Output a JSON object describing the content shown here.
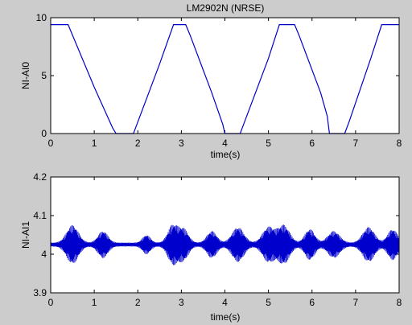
{
  "window": {
    "background": "#cccccc"
  },
  "chart_data": [
    {
      "type": "line",
      "title": "LM2902N (NRSE)",
      "xlabel": "time(s)",
      "ylabel": "NI-AI0",
      "xlim": [
        0,
        8
      ],
      "ylim": [
        0,
        10
      ],
      "xticks": [
        "0",
        "1",
        "2",
        "3",
        "4",
        "5",
        "6",
        "7",
        "8"
      ],
      "yticks": [
        "0",
        "5",
        "10"
      ],
      "line_color": "#0000cc",
      "grid": false,
      "series": [
        {
          "x": [
            0,
            0.4,
            0.5,
            1.0,
            1.42,
            1.5,
            1.9,
            2.0,
            2.5,
            2.82,
            3.1,
            3.2,
            3.7,
            3.95,
            4.0,
            4.35,
            4.45,
            5.0,
            5.25,
            5.6,
            5.7,
            6.2,
            6.35,
            6.4,
            6.75,
            6.85,
            7.35,
            7.6,
            8.0
          ],
          "y": [
            9.4,
            9.4,
            8.5,
            4.0,
            0.5,
            0.0,
            0.0,
            1.0,
            6.0,
            9.4,
            9.4,
            8.5,
            3.5,
            0.8,
            0.0,
            0.0,
            1.0,
            6.5,
            9.4,
            9.4,
            8.5,
            3.5,
            1.5,
            0.0,
            0.0,
            1.0,
            6.5,
            9.4,
            9.4
          ]
        }
      ]
    },
    {
      "type": "line",
      "title": "",
      "xlabel": "time(s)",
      "ylabel": "NI-AI1",
      "xlim": [
        0,
        8
      ],
      "ylim": [
        3.9,
        4.2
      ],
      "xticks": [
        "0",
        "1",
        "2",
        "3",
        "4",
        "5",
        "6",
        "7",
        "8"
      ],
      "yticks": [
        "3.9",
        "4",
        "4.1",
        "4.2"
      ],
      "line_color": "#0000cc",
      "grid": false,
      "series": [
        {
          "baseline": 4.025,
          "noise_amplitude": 0.005,
          "bursts": [
            {
              "center": 0.5,
              "width": 0.3,
              "amplitude": 0.045
            },
            {
              "center": 1.2,
              "width": 0.25,
              "amplitude": 0.03
            },
            {
              "center": 2.2,
              "width": 0.2,
              "amplitude": 0.02
            },
            {
              "center": 2.8,
              "width": 0.25,
              "amplitude": 0.045
            },
            {
              "center": 3.05,
              "width": 0.25,
              "amplitude": 0.035
            },
            {
              "center": 3.7,
              "width": 0.25,
              "amplitude": 0.03
            },
            {
              "center": 4.3,
              "width": 0.3,
              "amplitude": 0.04
            },
            {
              "center": 5.0,
              "width": 0.3,
              "amplitude": 0.04
            },
            {
              "center": 5.35,
              "width": 0.3,
              "amplitude": 0.045
            },
            {
              "center": 5.95,
              "width": 0.25,
              "amplitude": 0.035
            },
            {
              "center": 6.5,
              "width": 0.3,
              "amplitude": 0.03
            },
            {
              "center": 7.3,
              "width": 0.3,
              "amplitude": 0.04
            },
            {
              "center": 7.85,
              "width": 0.25,
              "amplitude": 0.035
            }
          ]
        }
      ]
    }
  ]
}
